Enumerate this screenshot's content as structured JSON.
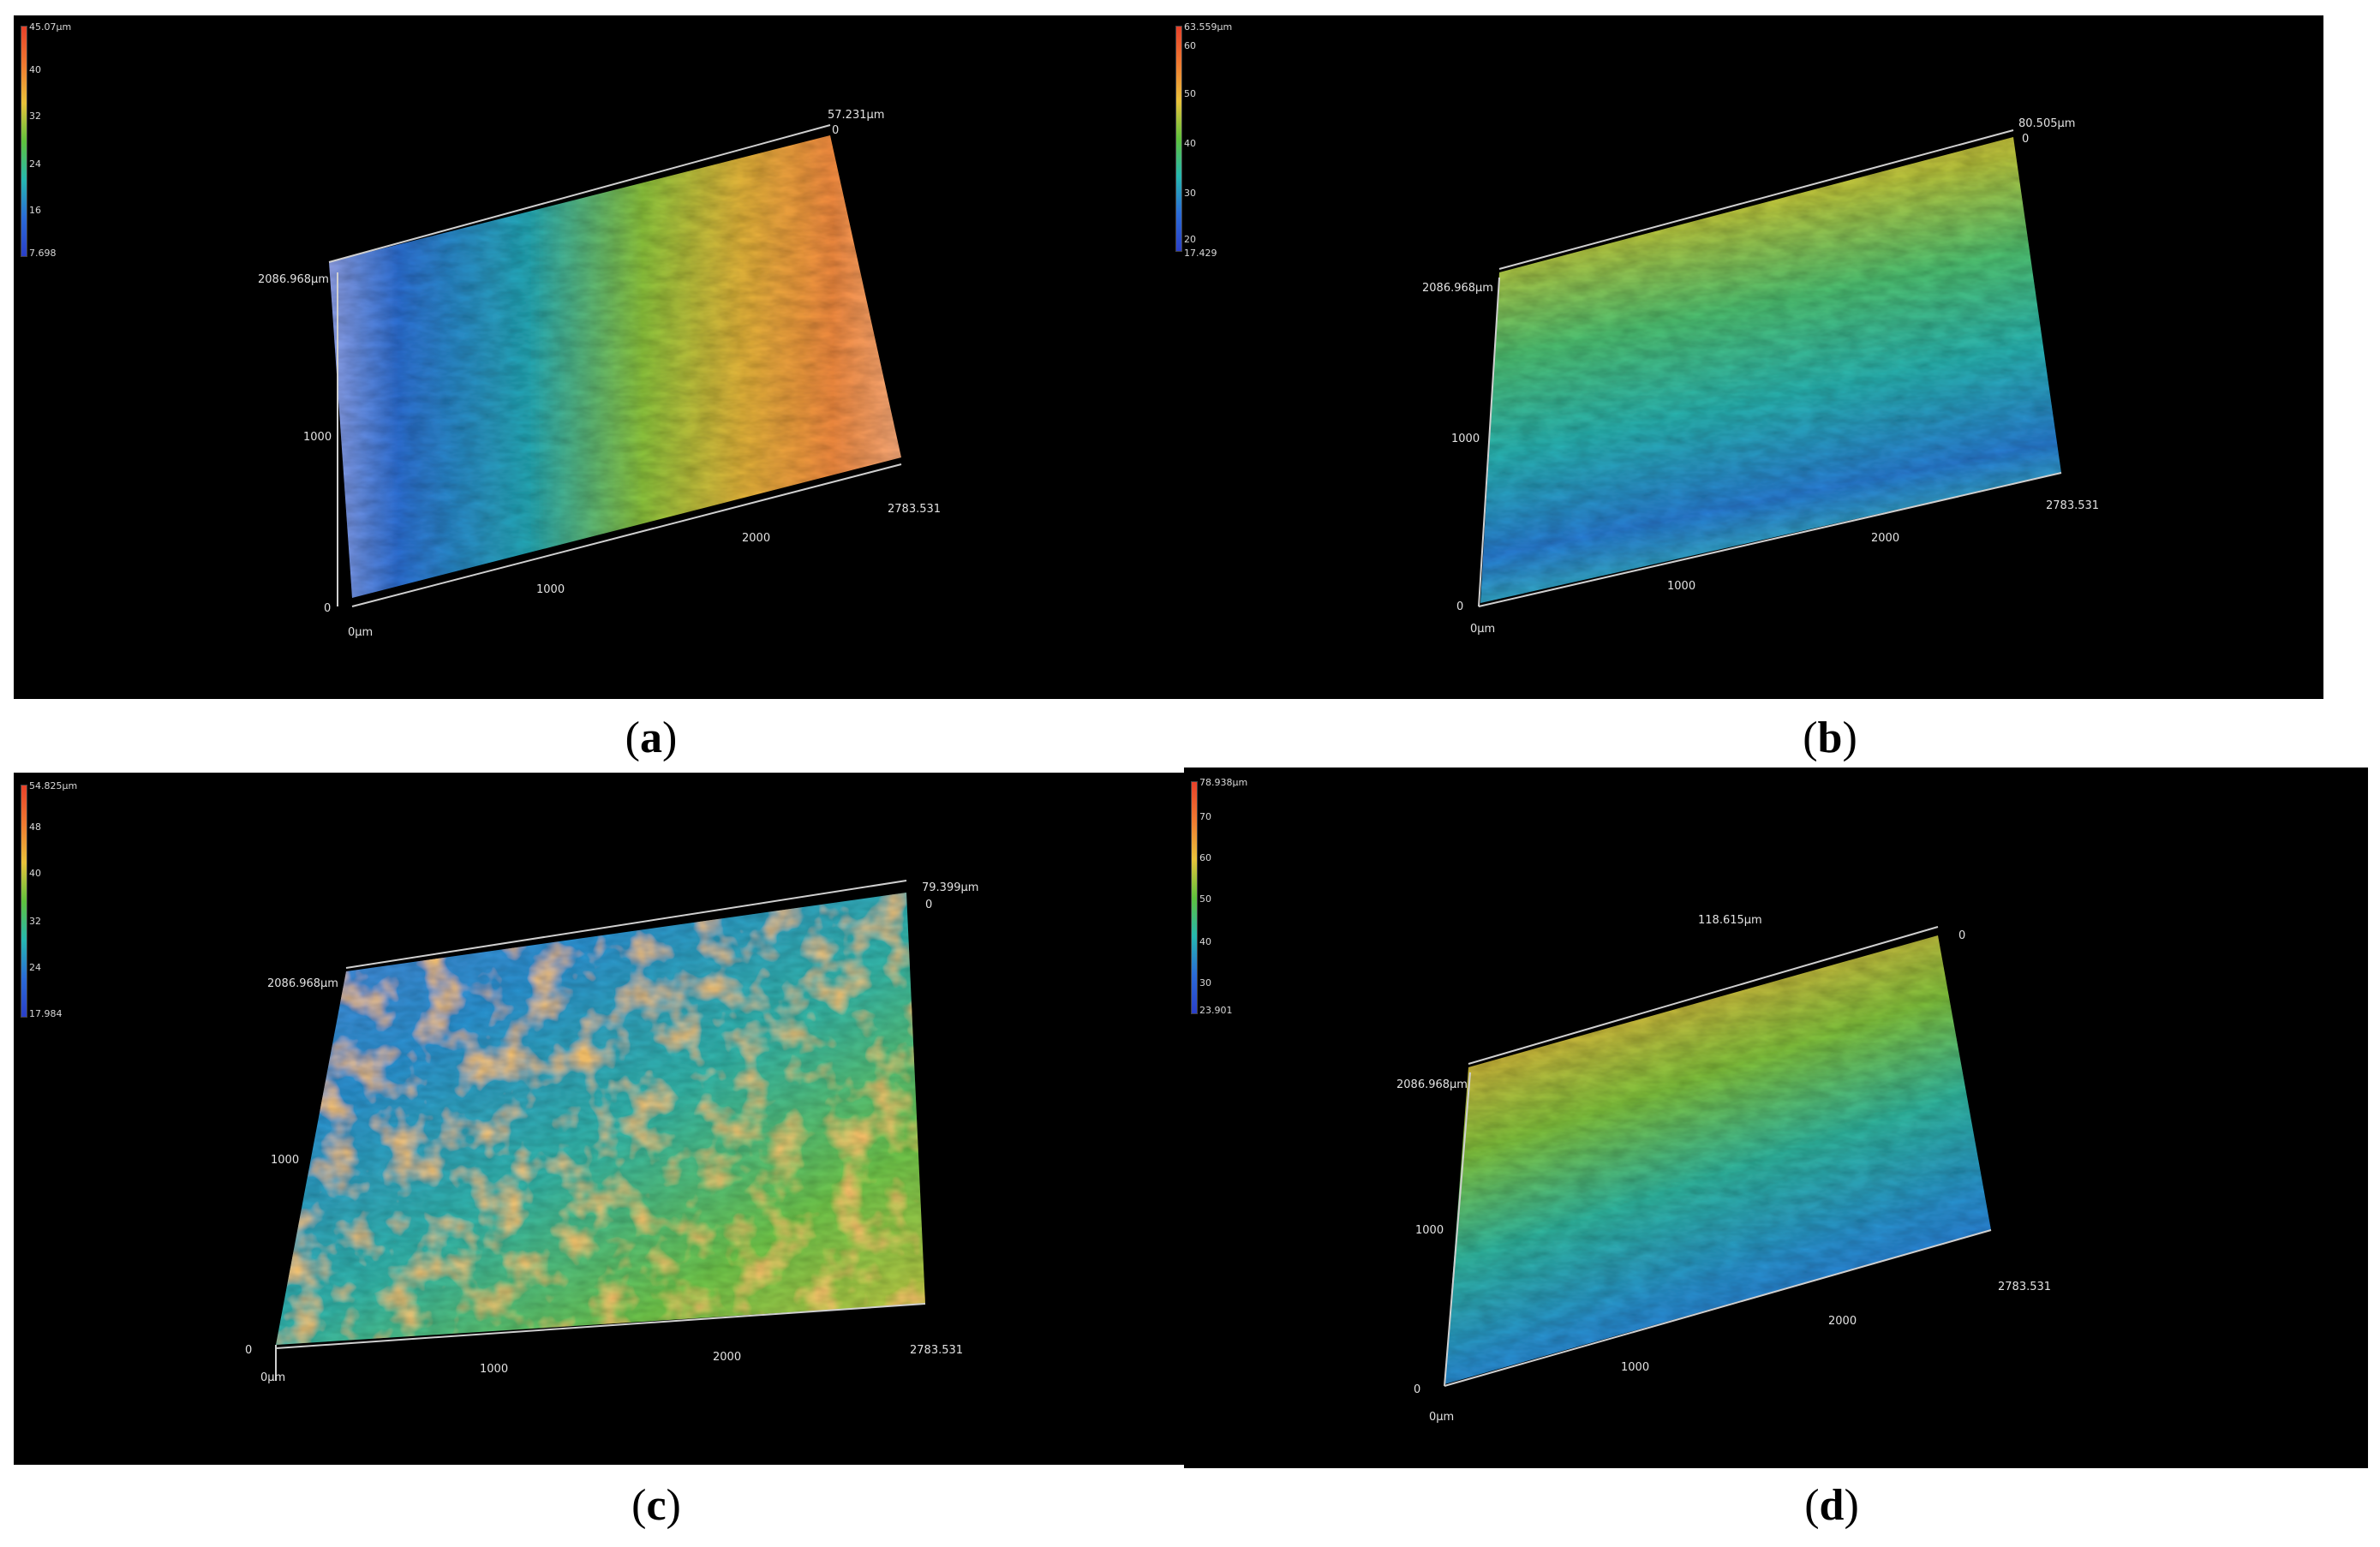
{
  "colorbar_colors": [
    "#e8412a",
    "#f07a30",
    "#e9c23a",
    "#5fc23c",
    "#25b8b0",
    "#2a6bd8",
    "#2a3fc8"
  ],
  "panels": [
    {
      "caption_open": "(",
      "caption_letter": "a",
      "caption_close": ")",
      "scale": [
        "45.07µm",
        "40",
        "32",
        "24",
        "16",
        "7.698"
      ],
      "z_top": "57.231µm",
      "z_zero": "0",
      "y_max": "2086.968µm",
      "y_mid": "1000",
      "y_zero": "0",
      "x_origin": "0µm",
      "x_1000": "1000",
      "x_2000": "2000",
      "x_max": "2783.531"
    },
    {
      "caption_open": "(",
      "caption_letter": "b",
      "caption_close": ")",
      "scale": [
        "63.559µm",
        "60",
        "50",
        "40",
        "30",
        "20",
        "17.429"
      ],
      "z_top": "80.505µm",
      "z_zero": "0",
      "y_max": "2086.968µm",
      "y_mid": "1000",
      "y_zero": "0",
      "x_origin": "0µm",
      "x_1000": "1000",
      "x_2000": "2000",
      "x_max": "2783.531"
    },
    {
      "caption_open": "(",
      "caption_letter": "c",
      "caption_close": ")",
      "scale": [
        "54.825µm",
        "48",
        "40",
        "32",
        "24",
        "17.984"
      ],
      "z_top": "79.399µm",
      "z_zero": "0",
      "y_max": "2086.968µm",
      "y_mid": "1000",
      "y_zero": "0",
      "x_origin": "0µm",
      "x_1000": "1000",
      "x_2000": "2000",
      "x_max": "2783.531"
    },
    {
      "caption_open": "(",
      "caption_letter": "d",
      "caption_close": ")",
      "scale": [
        "78.938µm",
        "70",
        "60",
        "50",
        "40",
        "30",
        "23.901"
      ],
      "z_top": "118.615µm",
      "z_zero": "0",
      "y_max": "2086.968µm",
      "y_mid": "1000",
      "y_zero": "0",
      "x_origin": "0µm",
      "x_1000": "1000",
      "x_2000": "2000",
      "x_max": "2783.531"
    }
  ]
}
